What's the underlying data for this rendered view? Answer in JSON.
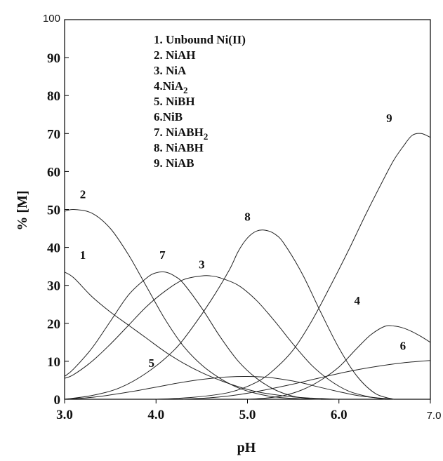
{
  "chart_data": {
    "type": "line",
    "title": "",
    "xlabel": "pH",
    "ylabel": "% [M]",
    "xlim": [
      3.0,
      7.0
    ],
    "ylim": [
      0,
      100
    ],
    "x_ticks": [
      {
        "value": 3.0,
        "label": "3.0"
      },
      {
        "value": 4.0,
        "label": "4.0"
      },
      {
        "value": 5.0,
        "label": "5.0"
      },
      {
        "value": 6.0,
        "label": "6.0"
      },
      {
        "value": 7.0,
        "label": "7.0"
      }
    ],
    "y_ticks": [
      {
        "value": 0,
        "label": "0"
      },
      {
        "value": 10,
        "label": "10"
      },
      {
        "value": 20,
        "label": "20"
      },
      {
        "value": 30,
        "label": "30"
      },
      {
        "value": 40,
        "label": "40"
      },
      {
        "value": 50,
        "label": "50"
      },
      {
        "value": 60,
        "label": "60"
      },
      {
        "value": 70,
        "label": "70"
      },
      {
        "value": 80,
        "label": "80"
      },
      {
        "value": 90,
        "label": "90"
      },
      {
        "value": 100,
        "label": "100"
      }
    ],
    "grid": false,
    "legend_position": "top-left",
    "legend": [
      {
        "label": "1. Unbound Ni(II)"
      },
      {
        "label": "2. NiAH"
      },
      {
        "label": "3. NiA"
      },
      {
        "label": "4.NiA",
        "sub": "2"
      },
      {
        "label": "5. NiBH"
      },
      {
        "label": "6.NiB"
      },
      {
        "label": "7. NiABH",
        "sub": "2"
      },
      {
        "label": "8. NiABH"
      },
      {
        "label": "9. NiAB"
      }
    ],
    "series": [
      {
        "name": "1",
        "x": [
          3.0,
          3.1,
          3.3,
          3.5,
          3.7,
          3.9,
          4.1,
          4.3,
          4.5,
          4.7,
          4.9,
          5.1,
          5.3,
          5.5,
          5.7,
          5.9,
          6.0
        ],
        "y": [
          33.5,
          32,
          27,
          23,
          19.5,
          16,
          12.5,
          9.5,
          7,
          5,
          3.3,
          2,
          1.2,
          0.6,
          0.3,
          0.1,
          0
        ],
        "label_at": [
          3.2,
          37
        ]
      },
      {
        "name": "2",
        "x": [
          3.0,
          3.1,
          3.3,
          3.5,
          3.7,
          3.9,
          4.1,
          4.3,
          4.5,
          4.7,
          4.9,
          5.1,
          5.3,
          5.5,
          5.7,
          5.8
        ],
        "y": [
          49.5,
          50,
          49,
          45,
          38,
          29.5,
          21,
          14,
          9,
          5.5,
          3,
          1.5,
          0.6,
          0.2,
          0.05,
          0
        ],
        "label_at": [
          3.2,
          53
        ]
      },
      {
        "name": "3",
        "x": [
          3.0,
          3.1,
          3.3,
          3.5,
          3.7,
          3.9,
          4.1,
          4.3,
          4.5,
          4.6,
          4.7,
          4.9,
          5.1,
          5.3,
          5.5,
          5.7,
          5.9,
          6.1,
          6.3,
          6.5
        ],
        "y": [
          5.5,
          6.5,
          10,
          14.5,
          19.5,
          24.5,
          28.5,
          31.5,
          32.5,
          32.5,
          32,
          30,
          26,
          20.5,
          14.5,
          9,
          5,
          2.2,
          0.8,
          0
        ],
        "label_at": [
          4.5,
          34.5
        ]
      },
      {
        "name": "4",
        "x": [
          5.0,
          5.2,
          5.4,
          5.6,
          5.8,
          6.0,
          6.2,
          6.35,
          6.5,
          6.6,
          6.7,
          6.8,
          6.9,
          7.0
        ],
        "y": [
          0,
          0.3,
          1,
          2.5,
          5,
          8.5,
          13.5,
          17,
          19.2,
          19.3,
          18.8,
          17.8,
          16.5,
          15
        ],
        "label_at": [
          6.2,
          25
        ]
      },
      {
        "name": "5",
        "x": [
          3.0,
          3.2,
          3.4,
          3.6,
          3.8,
          4.0,
          4.2,
          4.4,
          4.6,
          4.8,
          5.0,
          5.2,
          5.4,
          5.6,
          5.8,
          6.0,
          6.2,
          6.4,
          6.6
        ],
        "y": [
          0,
          0.3,
          0.8,
          1.5,
          2.3,
          3.2,
          4.1,
          4.9,
          5.5,
          5.9,
          6,
          5.8,
          5.2,
          4.3,
          3.1,
          2,
          1,
          0.4,
          0
        ],
        "label_at": [
          3.95,
          8.5
        ]
      },
      {
        "name": "6",
        "x": [
          4.3,
          4.6,
          4.9,
          5.2,
          5.5,
          5.8,
          6.1,
          6.4,
          6.7,
          7.0
        ],
        "y": [
          0,
          0.4,
          1.2,
          2.5,
          4,
          5.7,
          7.3,
          8.6,
          9.6,
          10.2
        ],
        "label_at": [
          6.7,
          13
        ]
      },
      {
        "name": "7",
        "x": [
          3.0,
          3.1,
          3.3,
          3.5,
          3.7,
          3.9,
          4.0,
          4.1,
          4.2,
          4.3,
          4.5,
          4.7,
          4.9,
          5.1,
          5.3,
          5.5,
          5.7,
          5.8
        ],
        "y": [
          6,
          8,
          13.5,
          20.5,
          27.5,
          32,
          33.3,
          33.5,
          32.5,
          30.5,
          24,
          16.5,
          10,
          5.5,
          2.5,
          0.8,
          0.1,
          0
        ],
        "label_at": [
          4.07,
          37
        ]
      },
      {
        "name": "8",
        "x": [
          3.0,
          3.3,
          3.6,
          3.9,
          4.2,
          4.4,
          4.6,
          4.8,
          4.9,
          5.0,
          5.1,
          5.2,
          5.3,
          5.4,
          5.6,
          5.8,
          6.0,
          6.2,
          6.4,
          6.6
        ],
        "y": [
          0,
          1,
          3,
          7,
          13,
          19,
          26,
          34,
          39,
          42.5,
          44.3,
          44.5,
          43.5,
          41,
          33,
          23,
          13.5,
          6,
          1.5,
          0
        ],
        "label_at": [
          5.0,
          47
        ]
      },
      {
        "name": "9",
        "x": [
          4.0,
          4.4,
          4.8,
          5.1,
          5.3,
          5.5,
          5.7,
          5.9,
          6.1,
          6.3,
          6.5,
          6.6,
          6.7,
          6.8,
          6.9,
          7.0
        ],
        "y": [
          0,
          0.5,
          1.8,
          4.5,
          8,
          13,
          20.5,
          29.5,
          39,
          49,
          58.5,
          63,
          66.5,
          69.5,
          70,
          69
        ],
        "label_at": [
          6.55,
          73
        ]
      }
    ]
  }
}
